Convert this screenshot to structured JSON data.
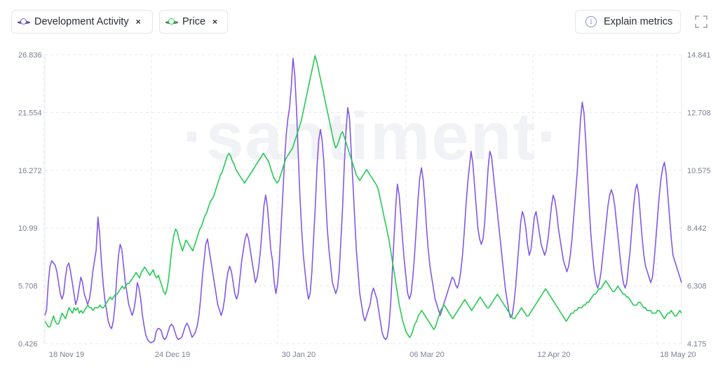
{
  "legend": {
    "development_activity": {
      "label": "Development Activity",
      "color": "#8358e6",
      "close": "×"
    },
    "price": {
      "label": "Price",
      "color": "#26c953",
      "close": "×"
    }
  },
  "buttons": {
    "explain_metrics": "Explain metrics",
    "info_glyph": "i"
  },
  "watermark": "·santiment·",
  "chart_data": {
    "type": "line",
    "x_ticks": [
      "18 Nov 19",
      "24 Dec 19",
      "30 Jan 20",
      "06 Mar 20",
      "12 Apr 20",
      "18 May 20"
    ],
    "x_range": [
      "16 Nov 19",
      "18 May 20"
    ],
    "grid": true,
    "left_axis": {
      "ticks": [
        "0.426",
        "5.708",
        "10.99",
        "16.272",
        "21.554",
        "26.836"
      ],
      "ylim": [
        0.426,
        26.836
      ]
    },
    "right_axis": {
      "ticks": [
        "4.175",
        "6.308",
        "8.442",
        "10.575",
        "12.708",
        "14.841"
      ],
      "ylim": [
        4.175,
        14.841
      ]
    },
    "series": [
      {
        "name": "Development Activity",
        "axis": "left",
        "color": "#8358e6",
        "values": [
          3.0,
          3.5,
          6.0,
          7.5,
          8.0,
          7.8,
          7.6,
          7.0,
          6.0,
          5.0,
          4.5,
          5.0,
          6.5,
          7.5,
          7.8,
          7.0,
          6.0,
          5.0,
          4.0,
          4.5,
          5.5,
          6.5,
          6.0,
          5.0,
          4.5,
          4.0,
          4.5,
          5.5,
          7.0,
          8.0,
          9.0,
          12.0,
          10.5,
          8.0,
          6.0,
          4.5,
          3.5,
          2.5,
          2.0,
          1.8,
          2.5,
          4.0,
          6.5,
          8.5,
          9.5,
          9.0,
          7.5,
          6.0,
          5.0,
          4.0,
          3.5,
          3.0,
          3.5,
          4.5,
          6.0,
          5.5,
          4.5,
          3.0,
          2.0,
          1.2,
          0.8,
          0.6,
          0.5,
          0.6,
          0.7,
          1.5,
          1.8,
          1.8,
          1.6,
          1.0,
          0.8,
          1.0,
          1.5,
          2.0,
          2.2,
          2.0,
          1.5,
          1.0,
          0.8,
          0.9,
          1.0,
          1.5,
          2.0,
          2.3,
          2.0,
          1.5,
          1.0,
          1.2,
          1.5,
          2.0,
          3.0,
          4.5,
          6.5,
          8.0,
          9.5,
          10.0,
          9.0,
          8.0,
          7.0,
          6.0,
          5.0,
          4.0,
          3.5,
          3.0,
          3.5,
          4.5,
          6.0,
          7.0,
          7.5,
          7.0,
          6.0,
          5.0,
          4.5,
          5.0,
          6.5,
          8.0,
          9.0,
          10.0,
          10.5,
          10.0,
          9.0,
          8.0,
          7.0,
          6.0,
          6.5,
          7.5,
          9.0,
          11.0,
          13.0,
          14.0,
          13.0,
          11.0,
          9.0,
          8.0,
          6.0,
          5.0,
          6.0,
          8.0,
          11.0,
          14.0,
          17.0,
          19.5,
          21.0,
          22.0,
          24.0,
          26.5,
          25.0,
          22.0,
          18.0,
          14.0,
          11.0,
          8.5,
          7.0,
          5.5,
          4.5,
          5.0,
          7.0,
          10.0,
          13.0,
          16.5,
          19.0,
          20.0,
          19.0,
          17.0,
          14.0,
          11.0,
          9.0,
          7.5,
          6.0,
          5.5,
          5.0,
          5.5,
          7.0,
          10.0,
          13.0,
          17.0,
          20.0,
          22.0,
          21.0,
          18.0,
          15.0,
          12.0,
          9.0,
          7.0,
          5.0,
          4.0,
          3.0,
          2.5,
          3.0,
          3.5,
          4.0,
          5.0,
          5.5,
          5.0,
          4.5,
          3.5,
          2.5,
          1.5,
          1.0,
          0.8,
          1.0,
          2.0,
          4.0,
          7.0,
          10.0,
          13.0,
          15.0,
          14.0,
          12.0,
          10.0,
          8.0,
          6.5,
          5.0,
          4.5,
          5.0,
          6.5,
          8.5,
          11.0,
          13.5,
          15.5,
          16.5,
          15.5,
          13.5,
          11.0,
          9.0,
          7.5,
          6.5,
          5.5,
          4.5,
          4.0,
          3.5,
          3.0,
          3.5,
          4.0,
          4.5,
          5.0,
          5.5,
          6.0,
          6.5,
          6.3,
          5.8,
          5.5,
          6.0,
          7.0,
          8.5,
          10.5,
          13.0,
          15.0,
          16.5,
          18.0,
          17.0,
          15.0,
          13.0,
          11.0,
          10.0,
          9.5,
          10.0,
          11.5,
          14.0,
          16.5,
          18.0,
          17.5,
          16.0,
          14.5,
          13.0,
          11.5,
          10.0,
          8.5,
          7.0,
          5.5,
          4.5,
          3.5,
          2.8,
          3.0,
          4.0,
          5.5,
          7.5,
          9.5,
          11.5,
          12.5,
          12.0,
          11.0,
          9.5,
          8.5,
          9.0,
          10.5,
          12.0,
          12.5,
          11.5,
          10.5,
          9.5,
          9.0,
          8.5,
          9.0,
          10.0,
          11.5,
          13.0,
          14.0,
          13.5,
          12.5,
          11.0,
          10.0,
          9.0,
          8.0,
          7.5,
          7.0,
          7.5,
          8.5,
          10.0,
          12.0,
          14.0,
          16.0,
          18.5,
          21.0,
          22.5,
          21.5,
          19.0,
          16.0,
          13.0,
          10.5,
          8.5,
          7.0,
          6.0,
          5.5,
          6.0,
          7.0,
          8.5,
          10.0,
          11.5,
          13.0,
          14.0,
          14.5,
          14.0,
          13.0,
          11.5,
          10.0,
          8.5,
          7.0,
          6.0,
          5.5,
          6.0,
          7.5,
          9.0,
          11.0,
          13.0,
          14.5,
          15.0,
          14.0,
          12.0,
          10.0,
          8.5,
          7.5,
          7.0,
          6.5,
          6.0,
          6.5,
          8.0,
          10.0,
          12.0,
          14.0,
          15.5,
          16.5,
          17.0,
          16.0,
          14.0,
          12.0,
          10.0,
          8.5,
          8.0,
          7.5,
          7.0,
          6.5,
          6.0
        ]
      },
      {
        "name": "Price",
        "axis": "right",
        "color": "#26c953",
        "values": [
          5.0,
          4.9,
          4.8,
          4.8,
          5.0,
          5.2,
          5.0,
          4.9,
          4.9,
          5.1,
          5.3,
          5.2,
          5.1,
          5.3,
          5.5,
          5.4,
          5.3,
          5.5,
          5.4,
          5.5,
          5.3,
          5.4,
          5.3,
          5.4,
          5.5,
          5.6,
          5.5,
          5.5,
          5.4,
          5.5,
          5.5,
          5.5,
          5.6,
          5.5,
          5.5,
          5.6,
          5.7,
          5.8,
          5.9,
          5.8,
          5.9,
          6.0,
          6.0,
          6.1,
          6.2,
          6.3,
          6.2,
          6.3,
          6.4,
          6.4,
          6.5,
          6.6,
          6.7,
          6.8,
          6.7,
          6.6,
          6.8,
          6.9,
          7.0,
          6.9,
          6.8,
          6.7,
          6.8,
          6.9,
          6.7,
          6.6,
          6.7,
          6.5,
          6.3,
          6.1,
          6.0,
          6.2,
          6.6,
          7.2,
          7.8,
          8.2,
          8.4,
          8.3,
          8.0,
          7.8,
          7.6,
          7.8,
          8.0,
          7.9,
          7.8,
          7.7,
          7.6,
          7.8,
          8.0,
          8.2,
          8.4,
          8.5,
          8.7,
          8.9,
          9.0,
          9.2,
          9.4,
          9.5,
          9.6,
          9.8,
          10.0,
          10.2,
          10.4,
          10.5,
          10.7,
          10.9,
          11.1,
          11.2,
          11.1,
          10.9,
          10.8,
          10.6,
          10.5,
          10.4,
          10.3,
          10.2,
          10.1,
          10.2,
          10.3,
          10.4,
          10.5,
          10.6,
          10.7,
          10.8,
          10.9,
          11.0,
          11.1,
          11.2,
          11.1,
          11.0,
          10.9,
          10.7,
          10.5,
          10.3,
          10.2,
          10.1,
          10.2,
          10.4,
          10.6,
          10.8,
          11.0,
          11.1,
          11.2,
          11.3,
          11.4,
          11.6,
          11.8,
          12.0,
          12.2,
          12.4,
          12.7,
          13.0,
          13.3,
          13.6,
          13.9,
          14.2,
          14.5,
          14.8,
          14.6,
          14.3,
          14.0,
          13.7,
          13.4,
          13.1,
          12.8,
          12.5,
          12.2,
          11.9,
          11.6,
          11.4,
          11.5,
          11.7,
          11.9,
          12.0,
          11.8,
          11.6,
          11.4,
          11.2,
          11.0,
          10.8,
          10.6,
          10.4,
          10.3,
          10.2,
          10.3,
          10.4,
          10.5,
          10.6,
          10.5,
          10.4,
          10.3,
          10.2,
          10.1,
          10.0,
          9.8,
          9.5,
          9.2,
          8.9,
          8.6,
          8.3,
          8.0,
          7.6,
          7.2,
          6.8,
          6.4,
          6.0,
          5.6,
          5.3,
          5.0,
          4.8,
          4.6,
          4.5,
          4.4,
          4.5,
          4.7,
          4.9,
          5.0,
          5.2,
          5.3,
          5.4,
          5.3,
          5.2,
          5.1,
          5.0,
          4.9,
          4.8,
          4.7,
          4.8,
          5.0,
          5.2,
          5.4,
          5.5,
          5.6,
          5.5,
          5.4,
          5.3,
          5.2,
          5.1,
          5.2,
          5.3,
          5.4,
          5.5,
          5.6,
          5.7,
          5.8,
          5.7,
          5.6,
          5.5,
          5.4,
          5.5,
          5.6,
          5.7,
          5.8,
          5.9,
          5.8,
          5.7,
          5.6,
          5.5,
          5.5,
          5.6,
          5.7,
          5.8,
          5.9,
          6.0,
          5.9,
          5.8,
          5.7,
          5.6,
          5.5,
          5.4,
          5.3,
          5.2,
          5.1,
          5.1,
          5.2,
          5.3,
          5.4,
          5.5,
          5.4,
          5.3,
          5.2,
          5.2,
          5.3,
          5.4,
          5.5,
          5.6,
          5.7,
          5.8,
          5.9,
          6.0,
          6.1,
          6.2,
          6.1,
          6.0,
          5.9,
          5.8,
          5.7,
          5.6,
          5.5,
          5.4,
          5.3,
          5.2,
          5.1,
          5.0,
          5.1,
          5.2,
          5.3,
          5.3,
          5.4,
          5.4,
          5.5,
          5.5,
          5.5,
          5.6,
          5.6,
          5.7,
          5.7,
          5.8,
          5.9,
          6.0,
          6.0,
          6.1,
          6.2,
          6.2,
          6.3,
          6.4,
          6.5,
          6.4,
          6.3,
          6.2,
          6.1,
          6.1,
          6.2,
          6.3,
          6.2,
          6.1,
          6.0,
          6.0,
          5.9,
          5.9,
          5.8,
          5.7,
          5.6,
          5.6,
          5.6,
          5.7,
          5.7,
          5.6,
          5.5,
          5.5,
          5.4,
          5.4,
          5.4,
          5.3,
          5.3,
          5.3,
          5.4,
          5.4,
          5.3,
          5.2,
          5.1,
          5.2,
          5.3,
          5.3,
          5.4,
          5.3,
          5.2,
          5.2,
          5.3,
          5.4,
          5.3
        ]
      }
    ]
  }
}
